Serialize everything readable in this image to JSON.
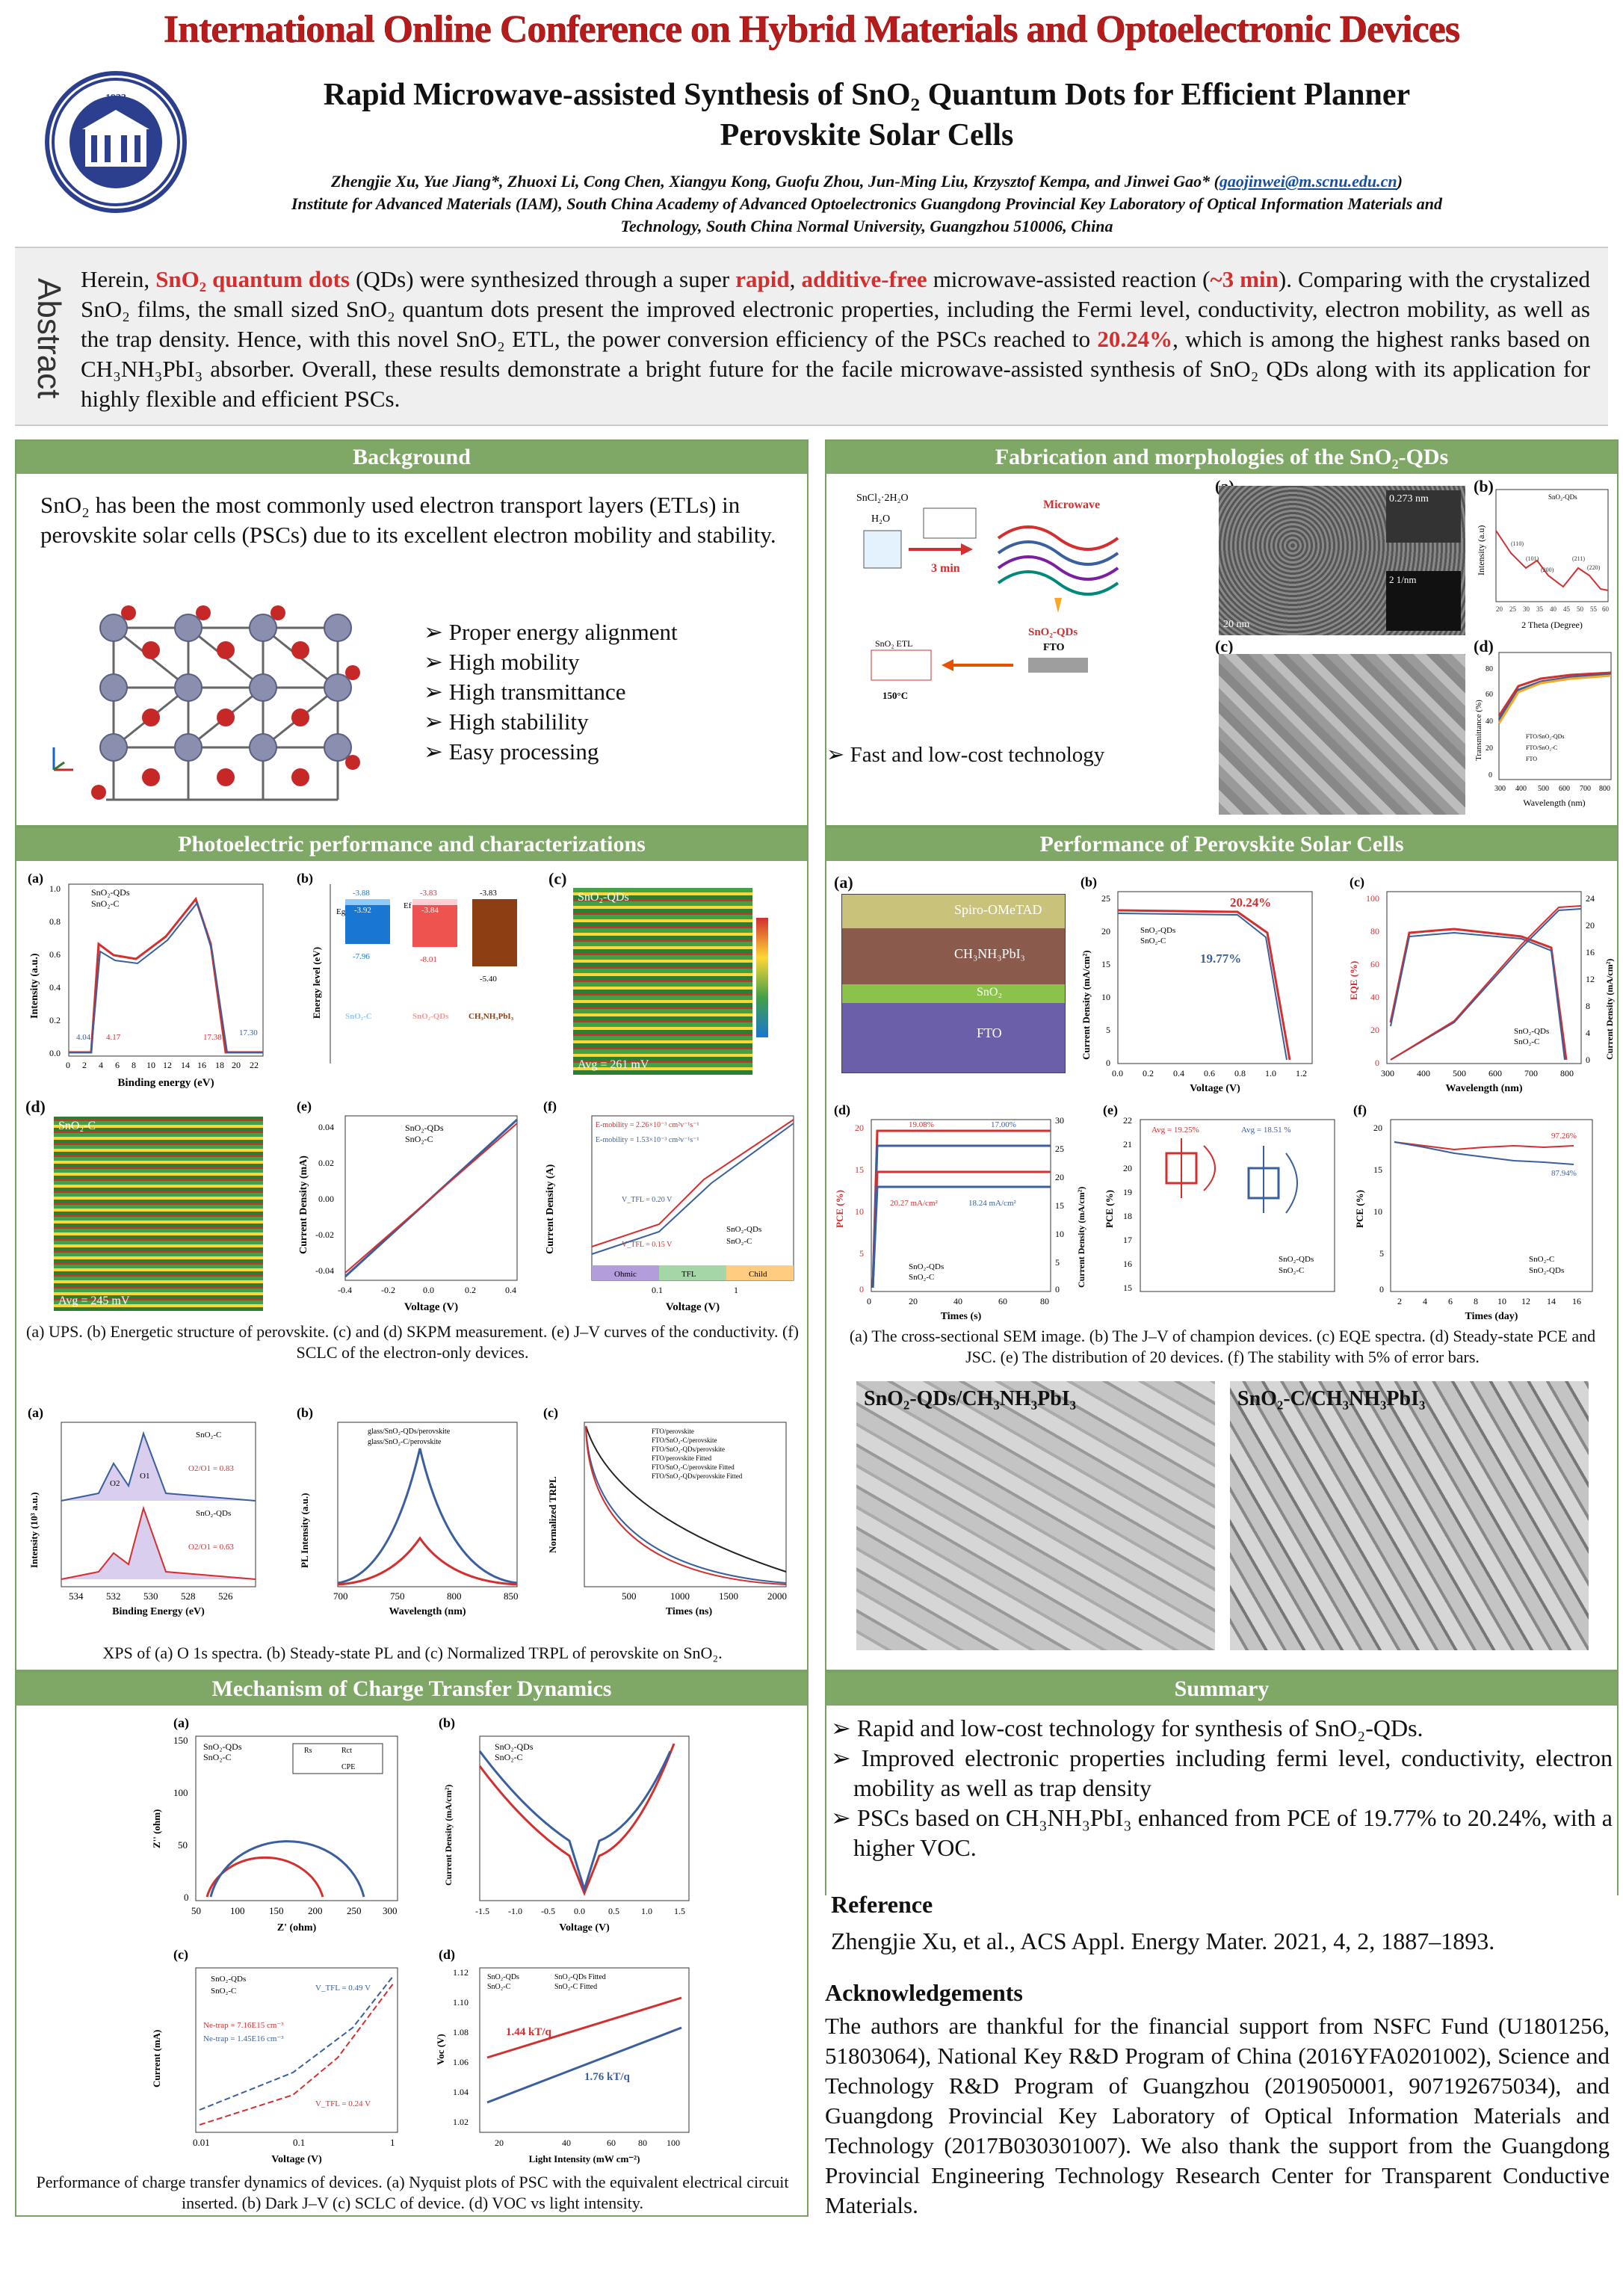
{
  "conference": "International Online Conference on Hybrid Materials and Optoelectronic Devices",
  "logo": {
    "year": "1933"
  },
  "title_line1": "Rapid Microwave-assisted Synthesis of SnO₂ Quantum Dots for Efficient Planner",
  "title_line2": "Perovskite Solar Cells",
  "authors": "Zhengjie Xu, Yue Jiang*, Zhuoxi Li, Cong Chen, Xiangyu Kong, Guofu Zhou, Jun-Ming Liu, Krzysztof Kempa, and Jinwei Gao*",
  "email": "gaojinwei@m.scnu.edu.cn",
  "affiliation_line1": "Institute for Advanced Materials (IAM), South China Academy of Advanced Optoelectronics Guangdong Provincial Key Laboratory of Optical Information Materials and",
  "affiliation_line2": "Technology, South China Normal University, Guangzhou 510006, China",
  "abstract_label": "Abstract",
  "abstract": {
    "p1": "Herein, ",
    "hl1": "SnO₂ quantum dots",
    "p2": " (QDs) were synthesized through a super ",
    "hl2": "rapid",
    "p3": ", ",
    "hl3": "additive-free",
    "p4": " microwave-assisted reaction (",
    "hl4": "~3 min",
    "p5": "). Comparing with the crystalized SnO₂ films, the small sized SnO₂ quantum dots present the improved electronic properties, including the Fermi level, conductivity, electron mobility, as well as the trap density. Hence, with this novel SnO₂ ETL, the power conversion efficiency of the PSCs reached to ",
    "hl5": "20.24%",
    "p6": ", which is among the highest ranks based on CH₃NH₃PbI₃ absorber. Overall, these results demonstrate a bright future for the facile microwave-assisted synthesis of SnO₂ QDs along with its application for highly flexible and efficient PSCs."
  },
  "background": {
    "heading": "Background",
    "text": "SnO₂ has been the most commonly used electron transport layers (ETLs) in perovskite solar cells (PSCs) due to its excellent electron mobility and stability.",
    "bullets": [
      "Proper energy alignment",
      "High mobility",
      "High transmittance",
      "High stabilility",
      "Easy processing"
    ]
  },
  "fabrication": {
    "heading": "Fabrication and morphologies of the SnO₂-QDs",
    "scheme": {
      "precursor": "SnCl₂·2H₂O",
      "water": "H₂O",
      "time": "3 min",
      "microwave": "Microwave",
      "product": "SnO₂-QDs",
      "substrate": "FTO",
      "etl": "SnO₂ ETL",
      "anneal": "150°C"
    },
    "labels": [
      "(a)",
      "(b)",
      "(c)",
      "(d)"
    ],
    "tem_scale": "20 nm",
    "tem_spacing": "0.273 nm",
    "saed": "2 1/nm",
    "xrd": {
      "legend": "SnO₂-QDs",
      "xlabel": "2 Theta (Degree)",
      "ylabel": "Intensity (a.u)",
      "ticks": [
        "20",
        "25",
        "30",
        "35",
        "40",
        "45",
        "50",
        "55",
        "60"
      ],
      "peaks": [
        "(110)",
        "(101)",
        "(200)",
        "(211)",
        "(220)"
      ]
    },
    "trans": {
      "xlabel": "Wavelength (nm)",
      "ylabel": "Transmittance (%)",
      "ticks": [
        "300",
        "400",
        "500",
        "600",
        "700",
        "800"
      ],
      "yticks": [
        "80",
        "60",
        "40",
        "20",
        "0"
      ],
      "legend": [
        "FTO/SnO₂-QDs",
        "FTO/SnO₂-C",
        "FTO"
      ]
    },
    "bullet": "Fast and low-cost technology"
  },
  "photo": {
    "heading": "Photoelectric performance and characterizations",
    "ups": {
      "legend": [
        "SnO₂-QDs",
        "SnO₂-C"
      ],
      "xlabel": "Binding energy (eV)",
      "ylabel": "Intensity (a.u.)",
      "xticks": [
        "0",
        "2",
        "4",
        "6",
        "8",
        "10",
        "12",
        "14",
        "16",
        "18",
        "20",
        "22"
      ],
      "yticks": [
        "1.0",
        "0.8",
        "0.6",
        "0.4",
        "0.2",
        "0.0"
      ],
      "ann": [
        "4.04",
        "4.17",
        "17.38",
        "17.30"
      ]
    },
    "energy": {
      "ylabel": "Energy level (eV)",
      "items": [
        {
          "name": "SnO₂-C",
          "cb": "-3.88",
          "ef": "-3.92",
          "vb": "-7.96"
        },
        {
          "name": "SnO₂-QDs",
          "cb": "-3.83",
          "ef": "-3.84",
          "vb": "-8.01"
        },
        {
          "name": "CH₃NH₃PbI₃",
          "cb": "-3.83",
          "vb": "-5.40"
        }
      ],
      "eg": "Eg",
      "efl": "Ef"
    },
    "kpm1": {
      "title": "SnO₂-QDs",
      "avg": "Avg = 261 mV"
    },
    "kpm2": {
      "title": "SnO₂-C",
      "avg": "Avg = 245 mV"
    },
    "iv": {
      "legend": [
        "SnO₂-QDs",
        "SnO₂-C"
      ],
      "xlabel": "Voltage (V)",
      "ylabel": "Current Density (mA)",
      "xticks": [
        "-0.4",
        "-0.2",
        "0.0",
        "0.2",
        "0.4"
      ],
      "yticks": [
        "0.04",
        "0.02",
        "0.00",
        "-0.02",
        "-0.04"
      ]
    },
    "sclc": {
      "mob1": "E-mobility = 2.26×10⁻³ cm²v⁻¹s⁻¹",
      "mob2": "E-mobility = 1.53×10⁻³ cm²v⁻¹s⁻¹",
      "v1": "V_TFL = 0.20 V",
      "v2": "V_TFL = 0.15 V",
      "legend": [
        "SnO₂-QDs",
        "SnO₂-C"
      ],
      "regions": [
        "Ohmic",
        "TFL",
        "Child"
      ],
      "xlabel": "Voltage (V)",
      "ylabel": "Current Density (A)",
      "xticks": [
        "0.1",
        "1"
      ]
    },
    "caption": "(a) UPS. (b) Energetic structure of perovskite. (c) and (d) SKPM measurement. (e) J–V curves of the conductivity. (f) SCLC of the electron-only devices.",
    "xps": {
      "legend1": "SnO₂-C",
      "legend2": "SnO₂-QDs",
      "ratio1": "O2/O1 = 0.83",
      "ratio2": "O2/O1 = 0.63",
      "o1": "O1",
      "o2": "O2",
      "xlabel": "Binding Energy (eV)",
      "ylabel": "Intensity (10³ a.u.)",
      "xticks": [
        "534",
        "532",
        "530",
        "528",
        "526"
      ]
    },
    "pl": {
      "legend": [
        "glass/SnO₂-QDs/perovskite",
        "glass/SnO₂-C/perovskite"
      ],
      "xlabel": "Wavelength (nm)",
      "ylabel": "PL Intensity (a.u.)",
      "xticks": [
        "700",
        "750",
        "800",
        "850"
      ]
    },
    "trpl": {
      "legend": [
        "FTO/perovskite",
        "FTO/SnO₂-C/perovskite",
        "FTO/SnO₂-QDs/perovskite",
        "FTO/perovskite Fitted",
        "FTO/SnO₂-C/perovskite Fitted",
        "FTO/SnO₂-QDs/perovskite Fitted"
      ],
      "xlabel": "Times (ns)",
      "ylabel": "Normalized TRPL",
      "xticks": [
        "500",
        "1000",
        "1500",
        "2000"
      ]
    },
    "caption2": "XPS of (a) O 1s spectra. (b) Steady-state PL and (c) Normalized TRPL of perovskite on SnO₂."
  },
  "mechanism": {
    "heading": "Mechanism of Charge Transfer Dynamics",
    "nyq": {
      "legend": [
        "SnO₂-QDs",
        "SnO₂-C"
      ],
      "xlabel": "Z' (ohm)",
      "ylabel": "Z'' (ohm)",
      "xticks": [
        "50",
        "100",
        "150",
        "200",
        "250",
        "300"
      ],
      "yticks": [
        "150",
        "100",
        "50",
        "0"
      ],
      "circuit": [
        "Rs",
        "Rct",
        "CPE"
      ]
    },
    "dark": {
      "legend": [
        "SnO₂-QDs",
        "SnO₂-C"
      ],
      "xlabel": "Voltage (V)",
      "ylabel": "Current Density (mA/cm²)",
      "xticks": [
        "-1.5",
        "-1.0",
        "-0.5",
        "0.0",
        "0.5",
        "1.0",
        "1.5"
      ]
    },
    "sclc": {
      "legend": [
        "SnO₂-QDs",
        "SnO₂-C"
      ],
      "n1": "Ne-trap = 7.16E15 cm⁻³",
      "n2": "Ne-trap = 1.45E16 cm⁻³",
      "v1": "V_TFL = 0.49 V",
      "v2": "V_TFL = 0.24 V",
      "xlabel": "Voltage (V)",
      "ylabel": "Current (mA)",
      "xticks": [
        "0.01",
        "0.1",
        "1"
      ]
    },
    "voc": {
      "legend": [
        "SnO₂-QDs",
        "SnO₂-C",
        "SnO₂-QDs Fitted",
        "SnO₂-C Fitted"
      ],
      "s1": "1.44 kT/q",
      "s2": "1.76 kT/q",
      "xlabel": "Light Intensity (mW cm⁻²)",
      "ylabel": "Voc (V)",
      "xticks": [
        "20",
        "40",
        "60",
        "80",
        "100"
      ],
      "yticks": [
        "1.12",
        "1.10",
        "1.08",
        "1.06",
        "1.04",
        "1.02"
      ]
    },
    "caption": "Performance of charge transfer dynamics of devices. (a) Nyquist plots of PSC with the equivalent electrical circuit inserted. (b) Dark J–V (c) SCLC of device. (d) VOC vs light intensity."
  },
  "psc": {
    "heading": "Performance of Perovskite Solar Cells",
    "sem_layers": [
      "Spiro-OMeTAD",
      "CH₃NH₃PbI₃",
      "SnO₂",
      "FTO"
    ],
    "jv": {
      "legend": [
        "SnO₂-QDs",
        "SnO₂-C"
      ],
      "pce1": "20.24%",
      "pce2": "19.77%",
      "xlabel": "Voltage (V)",
      "ylabel": "Current Density (mA/cm²)",
      "xticks": [
        "0.0",
        "0.2",
        "0.4",
        "0.6",
        "0.8",
        "1.0",
        "1.2"
      ],
      "yticks": [
        "25",
        "20",
        "15",
        "10",
        "5",
        "0"
      ]
    },
    "eqe": {
      "legend": [
        "SnO₂-QDs",
        "SnO₂-C"
      ],
      "xlabel": "Wavelength (nm)",
      "ylabel": "EQE (%)",
      "y2label": "Current Density (mA/cm²)",
      "xticks": [
        "300",
        "400",
        "500",
        "600",
        "700",
        "800"
      ],
      "yticks": [
        "100",
        "80",
        "60",
        "40",
        "20",
        "0"
      ],
      "y2ticks": [
        "24",
        "20",
        "16",
        "12",
        "8",
        "4",
        "0"
      ]
    },
    "ss": {
      "a1": "19.08%",
      "a2": "17.00%",
      "j1": "20.27 mA/cm²",
      "j2": "18.24 mA/cm²",
      "legend": [
        "SnO₂-QDs",
        "SnO₂-C"
      ],
      "xlabel": "Times (s)",
      "ylabel": "PCE (%)",
      "y2label": "Current Density (mA/cm²)",
      "xticks": [
        "0",
        "20",
        "40",
        "60",
        "80"
      ],
      "yticks": [
        "20",
        "15",
        "10",
        "5",
        "0"
      ],
      "y2ticks": [
        "30",
        "25",
        "20",
        "15",
        "10",
        "5",
        "0"
      ]
    },
    "box": {
      "avg1": "Avg = 19.25%",
      "avg2": "Avg = 18.51 %",
      "legend": [
        "SnO₂-QDs",
        "SnO₂-C"
      ],
      "ylabel": "PCE (%)",
      "yticks": [
        "22",
        "21",
        "20",
        "19",
        "18",
        "17",
        "16",
        "15"
      ]
    },
    "stab": {
      "e1": "97.26%",
      "e2": "87.94%",
      "legend": [
        "SnO₂-C",
        "SnO₂-QDs"
      ],
      "xlabel": "Times (day)",
      "ylabel": "PCE (%)",
      "xticks": [
        "2",
        "4",
        "6",
        "8",
        "10",
        "12",
        "14",
        "16"
      ],
      "yticks": [
        "20",
        "15",
        "10",
        "5",
        "0"
      ]
    },
    "caption": "(a) The cross-sectional SEM image. (b) The J–V of champion devices. (c) EQE spectra. (d) Steady-state PCE and JSC. (e) The distribution of 20 devices. (f) The stability with 5% of error bars.",
    "sem1": "SnO₂-QDs/CH₃NH₃PbI₃",
    "sem2": "SnO₂-C/CH₃NH₃PbI₃"
  },
  "summary": {
    "heading": "Summary",
    "b1": "Rapid and low-cost technology for synthesis of SnO₂-QDs.",
    "b2": "Improved electronic properties including fermi level, conductivity, electron mobility as well as trap density",
    "b3": "PSCs based on CH₃NH₃PbI₃ enhanced from PCE of 19.77% to 20.24%, with a higher VOC."
  },
  "reference": {
    "heading": "Reference",
    "text": "Zhengjie Xu, et al., ACS Appl. Energy Mater. 2021, 4, 2, 1887–1893."
  },
  "ack": {
    "heading": "Acknowledgements",
    "text": "The authors are thankful for the financial support from NSFC Fund (U1801256, 51803064), National Key R&D Program of China (2016YFA0201002), Science and Technology R&D Program of Guangzhou (2019050001, 907192675034), and Guangdong Provincial Key Laboratory of Optical Information Materials and Technology (2017B030301007). We also thank the support from the Guangdong Provincial Engineering Technology Research Center for Transparent Conductive Materials."
  },
  "colors": {
    "accent": "#7fa866",
    "red": "#d32f2f",
    "blue": "#3a5f9e",
    "title_red": "#b71c1c"
  }
}
